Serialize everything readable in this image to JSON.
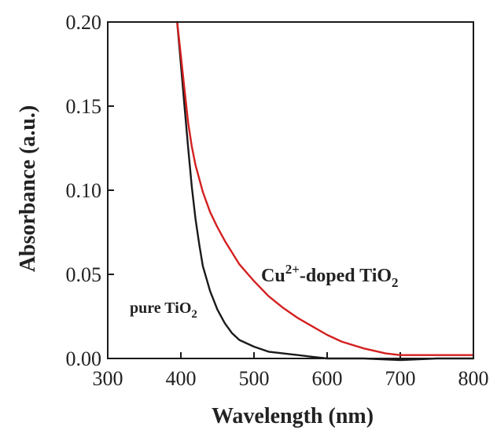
{
  "chart_data": {
    "type": "line",
    "xlabel": "Wavelength (nm)",
    "ylabel": "Absorbance (a.u.)",
    "xlim": [
      300,
      800
    ],
    "ylim": [
      0.0,
      0.2
    ],
    "xticks": [
      "300",
      "400",
      "500",
      "600",
      "700",
      "800"
    ],
    "yticks": [
      "0.00",
      "0.05",
      "0.10",
      "0.15",
      "0.20"
    ],
    "grid": false,
    "legend": "none",
    "series": [
      {
        "name": "pure TiO2",
        "color": "#1a1a1a",
        "x": [
          395,
          400,
          405,
          410,
          415,
          420,
          425,
          430,
          440,
          450,
          460,
          470,
          480,
          500,
          520,
          540,
          560,
          580,
          600,
          650,
          700,
          750,
          800
        ],
        "y": [
          0.2,
          0.175,
          0.15,
          0.125,
          0.102,
          0.083,
          0.068,
          0.055,
          0.04,
          0.029,
          0.021,
          0.015,
          0.011,
          0.007,
          0.004,
          0.003,
          0.002,
          0.001,
          0.0,
          0.0,
          -0.001,
          0.0,
          0.0
        ]
      },
      {
        "name": "Cu2+-doped TiO2",
        "color": "#d42020",
        "x": [
          395,
          400,
          405,
          410,
          415,
          420,
          430,
          440,
          450,
          460,
          470,
          480,
          500,
          520,
          540,
          560,
          580,
          600,
          620,
          650,
          680,
          700,
          720,
          750,
          800
        ],
        "y": [
          0.2,
          0.18,
          0.16,
          0.14,
          0.126,
          0.115,
          0.099,
          0.087,
          0.078,
          0.07,
          0.063,
          0.056,
          0.046,
          0.037,
          0.03,
          0.024,
          0.019,
          0.014,
          0.01,
          0.006,
          0.003,
          0.002,
          0.002,
          0.002,
          0.002
        ]
      }
    ],
    "annotations": [
      {
        "id": "cu",
        "base": "Cu",
        "sup": "2+",
        "mid": "-doped TiO",
        "sub": "2"
      },
      {
        "id": "pure",
        "base": "pure TiO",
        "sub": "2"
      }
    ]
  }
}
